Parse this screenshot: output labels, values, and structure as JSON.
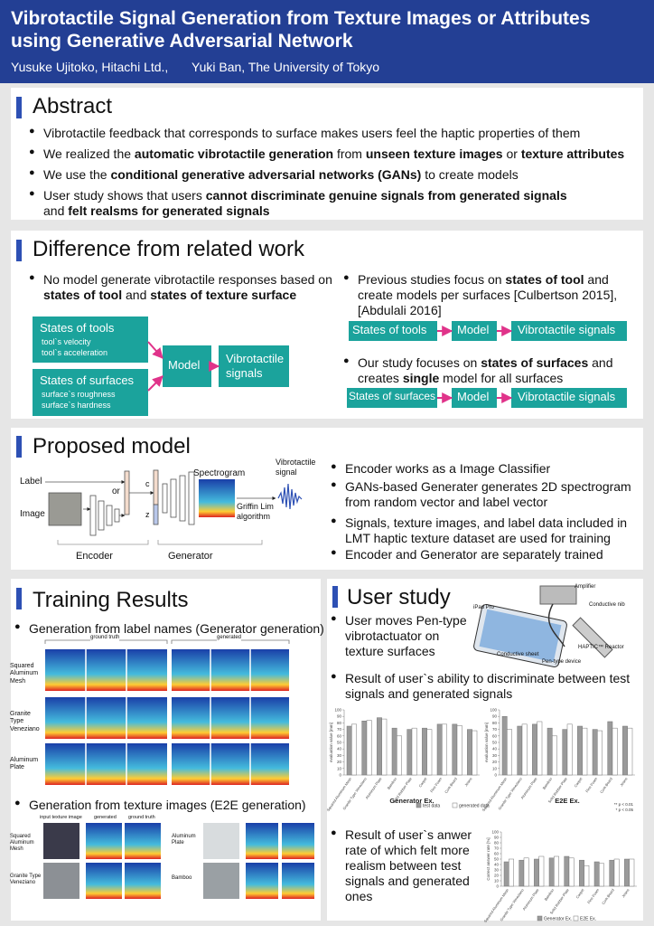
{
  "header": {
    "title": "Vibrotactile Signal Generation from Texture Images or Attributes using Generative Adversarial Network",
    "authors": [
      "Yusuke Ujitoko, Hitachi Ltd.,",
      "Yuki Ban, The University of Tokyo"
    ]
  },
  "abstract": {
    "heading": "Abstract",
    "bullets": [
      [
        {
          "t": "Vibrotactile feedback that corresponds to surface makes users feel the haptic properties of them"
        }
      ],
      [
        {
          "t": "We realized the "
        },
        {
          "t": "automatic vibrotactile generation",
          "b": true
        },
        {
          "t": " from "
        },
        {
          "t": "unseen texture images",
          "b": true
        },
        {
          "t": " or "
        },
        {
          "t": "texture attributes",
          "b": true
        }
      ],
      [
        {
          "t": "We use the "
        },
        {
          "t": "conditional generative adversarial networks (GANs)",
          "b": true
        },
        {
          "t": " to create models"
        }
      ],
      [
        {
          "t": "User study shows that users "
        },
        {
          "t": "cannot discriminate genuine signals from generated signals",
          "b": true
        },
        {
          "t": " and "
        },
        {
          "t": "felt realsms for generated signals",
          "b": true
        }
      ]
    ]
  },
  "related": {
    "heading": "Difference from related work",
    "left_bullet": [
      {
        "t": "No model generate vibrotactile responses based on "
      },
      {
        "t": "states of tool",
        "b": true
      },
      {
        "t": " and "
      },
      {
        "t": "states of texture surface",
        "b": true
      }
    ],
    "diagram": {
      "box1_title": "States of tools",
      "box1_items": [
        "tool`s velocity",
        "tool`s acceleration"
      ],
      "box2_title": "States of surfaces",
      "box2_items": [
        "surface`s roughness",
        "surface`s hardness"
      ],
      "model": "Model",
      "output": "Vibrotactile signals"
    },
    "right_bullets": [
      [
        {
          "t": "Previous studies focus on "
        },
        {
          "t": "states of tool",
          "b": true
        },
        {
          "t": " and create models per surfaces [Culbertson 2015], [Abdulali 2016]"
        }
      ],
      [
        {
          "t": "Our study focuses on "
        },
        {
          "t": "states of surfaces",
          "b": true
        },
        {
          "t": " and creates "
        },
        {
          "t": "single",
          "b": true
        },
        {
          "t": " model for all surfaces"
        }
      ]
    ],
    "flow1": [
      "States of tools",
      "Model",
      "Vibrotactile signals"
    ],
    "flow2": [
      "States of surfaces",
      "Model",
      "Vibrotactile signals"
    ]
  },
  "proposed": {
    "heading": "Proposed model",
    "diagram": {
      "label": "Label",
      "image": "Image",
      "or": "or",
      "c": "c",
      "z": "z",
      "spectrogram": "Spectrogram",
      "signal": "Vibrotactile signal",
      "griffin": "Griffin Lim algorithm",
      "encoder": "Encoder",
      "generator": "Generator"
    },
    "bullets": [
      [
        {
          "t": "Encoder works as a Image Classifier"
        }
      ],
      [
        {
          "t": "GANs-based Generater generates 2D spectrogram from random vector and label vector"
        }
      ],
      [
        {
          "t": "Signals, texture images, and label data included in LMT haptic texture dataset are used for training"
        }
      ],
      [
        {
          "t": "Encoder and Generator are separately trained"
        }
      ]
    ]
  },
  "training": {
    "heading": "Training Results",
    "bullet1": "Generation from label names (Generator generation)",
    "fig1": {
      "ground_truth": "ground truth",
      "generated": "generated",
      "rows": [
        "Squared Aluminum Mesh",
        "Granite Type Veneziano",
        "Aluminum Plate"
      ]
    },
    "bullet2": "Generation from texture images  (E2E generation)",
    "fig2": {
      "columns": [
        "input texture image",
        "generated",
        "ground truth"
      ],
      "rows": [
        "Squared Aluminum Mesh",
        "Granite Type Veneziano",
        "Aluminum Plate",
        "Bamboo"
      ]
    }
  },
  "user_study": {
    "heading": "User study",
    "bullet1": "User moves Pen-type vibrotactuator on texture surfaces",
    "device": [
      "Amplifier",
      "iPad Pro",
      "Conductive nib",
      "Conductive sheet",
      "Pen-type device",
      "HAPTIC™ Reactor"
    ],
    "bullet2": "Result of user`s ability to discriminate between test signals and generated signals",
    "bullet3": "Result of user`s anwer rate of which felt more realism between test signals and generated ones"
  },
  "chart_data": [
    {
      "type": "bar",
      "title": "Generator Ex.",
      "y_label": "evaluation value [mm]",
      "categories": [
        "Squared Aluminum Mesh",
        "Granite Type Veneziano",
        "Aluminum Plate",
        "Bamboo",
        "Solid Rubber Plate",
        "Carpet",
        "Fine Foam",
        "Cork Board",
        "Jeans"
      ],
      "series": [
        {
          "name": "test data",
          "color": "#9a9a9a",
          "values": [
            75,
            83,
            88,
            72,
            70,
            72,
            78,
            78,
            70
          ]
        },
        {
          "name": "generated data",
          "color": "#ffffff",
          "values": [
            78,
            84,
            86,
            60,
            72,
            70,
            78,
            76,
            68
          ]
        }
      ],
      "ylim": [
        0,
        100
      ],
      "yticks": [
        0,
        10,
        20,
        30,
        40,
        50,
        60,
        70,
        80,
        90,
        100
      ]
    },
    {
      "type": "bar",
      "title": "E2E Ex.",
      "y_label": "evaluation value [mm]",
      "categories": [
        "Squared Aluminum Mesh",
        "Granite Type Veneziano",
        "Aluminum Plate",
        "Bamboo",
        "Solid Rubber Plate",
        "Carpet",
        "Fine Foam",
        "Cork Board",
        "Jeans"
      ],
      "series": [
        {
          "color": "#9a9a9a",
          "values": [
            90,
            75,
            78,
            72,
            70,
            75,
            70,
            82,
            75
          ]
        },
        {
          "color": "#ffffff",
          "values": [
            70,
            78,
            82,
            60,
            78,
            72,
            68,
            72,
            72
          ]
        }
      ],
      "annotations": [
        "** p < 0.01",
        "* p < 0.05"
      ],
      "ylim": [
        0,
        100
      ],
      "yticks": [
        0,
        10,
        20,
        30,
        40,
        50,
        60,
        70,
        80,
        90,
        100
      ]
    },
    {
      "type": "bar",
      "y_label": "Correct answer rate [%]",
      "categories": [
        "Squared Aluminum Mesh",
        "Granite Type Veneziano",
        "Aluminum Plate",
        "Bamboo",
        "Solid Rubber Plate",
        "Carpet",
        "Fine Foam",
        "Cork Board",
        "Jeans"
      ],
      "series": [
        {
          "name": "Generator Ex.",
          "color": "#9a9a9a",
          "values": [
            45,
            48,
            50,
            52,
            55,
            48,
            45,
            48,
            50
          ]
        },
        {
          "name": "E2E Ex.",
          "color": "#ffffff",
          "values": [
            50,
            52,
            55,
            55,
            52,
            38,
            42,
            50,
            50
          ]
        }
      ],
      "ylim": [
        0,
        100
      ],
      "yticks": [
        0,
        10,
        20,
        30,
        40,
        50,
        60,
        70,
        80,
        90,
        100
      ]
    }
  ]
}
